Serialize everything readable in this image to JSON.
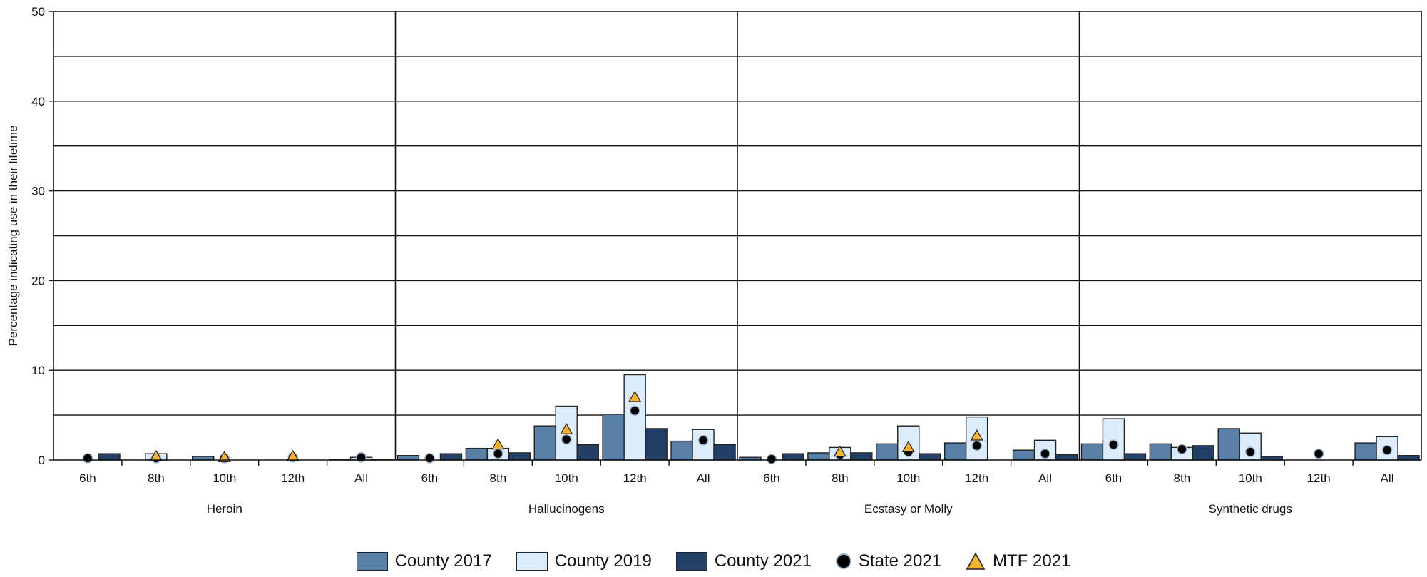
{
  "chart_data": {
    "type": "bar",
    "ylabel": "Percentage indicating use in their lifetime",
    "ylim": [
      0,
      50
    ],
    "yticks": [
      0,
      10,
      20,
      30,
      40,
      50
    ],
    "grid": true,
    "legend_position": "bottom",
    "bar_series": [
      {
        "name": "County 2017",
        "color": "#5a7fa6"
      },
      {
        "name": "County 2019",
        "color": "#dcecfa"
      },
      {
        "name": "County 2021",
        "color": "#243f66"
      }
    ],
    "marker_series": [
      {
        "name": "State 2021",
        "marker": "circle",
        "color": "#000000"
      },
      {
        "name": "MTF 2021",
        "marker": "triangle",
        "color": "#f5b335"
      }
    ],
    "groups": [
      {
        "label": "Heroin",
        "categories": [
          {
            "label": "6th",
            "bars": [
              0,
              0,
              0.7
            ],
            "state": 0.2,
            "mtf": null
          },
          {
            "label": "8th",
            "bars": [
              0,
              0.7,
              0
            ],
            "state": 0.2,
            "mtf": 0.4
          },
          {
            "label": "10th",
            "bars": [
              0.4,
              0,
              0
            ],
            "state": 0.2,
            "mtf": 0.3
          },
          {
            "label": "12th",
            "bars": [
              0,
              0,
              0
            ],
            "state": 0.3,
            "mtf": 0.4
          },
          {
            "label": "All",
            "bars": [
              0.1,
              0.3,
              0.1
            ],
            "state": 0.3,
            "mtf": null
          }
        ]
      },
      {
        "label": "Hallucinogens",
        "categories": [
          {
            "label": "6th",
            "bars": [
              0.5,
              0,
              0.7
            ],
            "state": 0.2,
            "mtf": null
          },
          {
            "label": "8th",
            "bars": [
              1.3,
              1.3,
              0.8
            ],
            "state": 0.7,
            "mtf": 1.7
          },
          {
            "label": "10th",
            "bars": [
              3.8,
              6.0,
              1.7
            ],
            "state": 2.3,
            "mtf": 3.4
          },
          {
            "label": "12th",
            "bars": [
              5.1,
              9.5,
              3.5
            ],
            "state": 5.5,
            "mtf": 7.0
          },
          {
            "label": "All",
            "bars": [
              2.1,
              3.4,
              1.7
            ],
            "state": 2.2,
            "mtf": null
          }
        ]
      },
      {
        "label": "Ecstasy or Molly",
        "categories": [
          {
            "label": "6th",
            "bars": [
              0.3,
              0,
              0.7
            ],
            "state": 0.1,
            "mtf": null
          },
          {
            "label": "8th",
            "bars": [
              0.8,
              1.4,
              0.8
            ],
            "state": 0.6,
            "mtf": 0.9
          },
          {
            "label": "10th",
            "bars": [
              1.8,
              3.8,
              0.7
            ],
            "state": 0.9,
            "mtf": 1.4
          },
          {
            "label": "12th",
            "bars": [
              1.9,
              4.8,
              0
            ],
            "state": 1.6,
            "mtf": 2.7
          },
          {
            "label": "All",
            "bars": [
              1.1,
              2.2,
              0.6
            ],
            "state": 0.7,
            "mtf": null
          }
        ]
      },
      {
        "label": "Synthetic drugs",
        "categories": [
          {
            "label": "6th",
            "bars": [
              1.8,
              4.6,
              0.7
            ],
            "state": 1.7,
            "mtf": null
          },
          {
            "label": "8th",
            "bars": [
              1.8,
              1.4,
              1.6
            ],
            "state": 1.2,
            "mtf": null
          },
          {
            "label": "10th",
            "bars": [
              3.5,
              3.0,
              0.4
            ],
            "state": 0.9,
            "mtf": null
          },
          {
            "label": "12th",
            "bars": [
              0,
              0,
              0
            ],
            "state": 0.7,
            "mtf": null
          },
          {
            "label": "All",
            "bars": [
              1.9,
              2.6,
              0.5
            ],
            "state": 1.1,
            "mtf": null
          }
        ]
      }
    ]
  }
}
